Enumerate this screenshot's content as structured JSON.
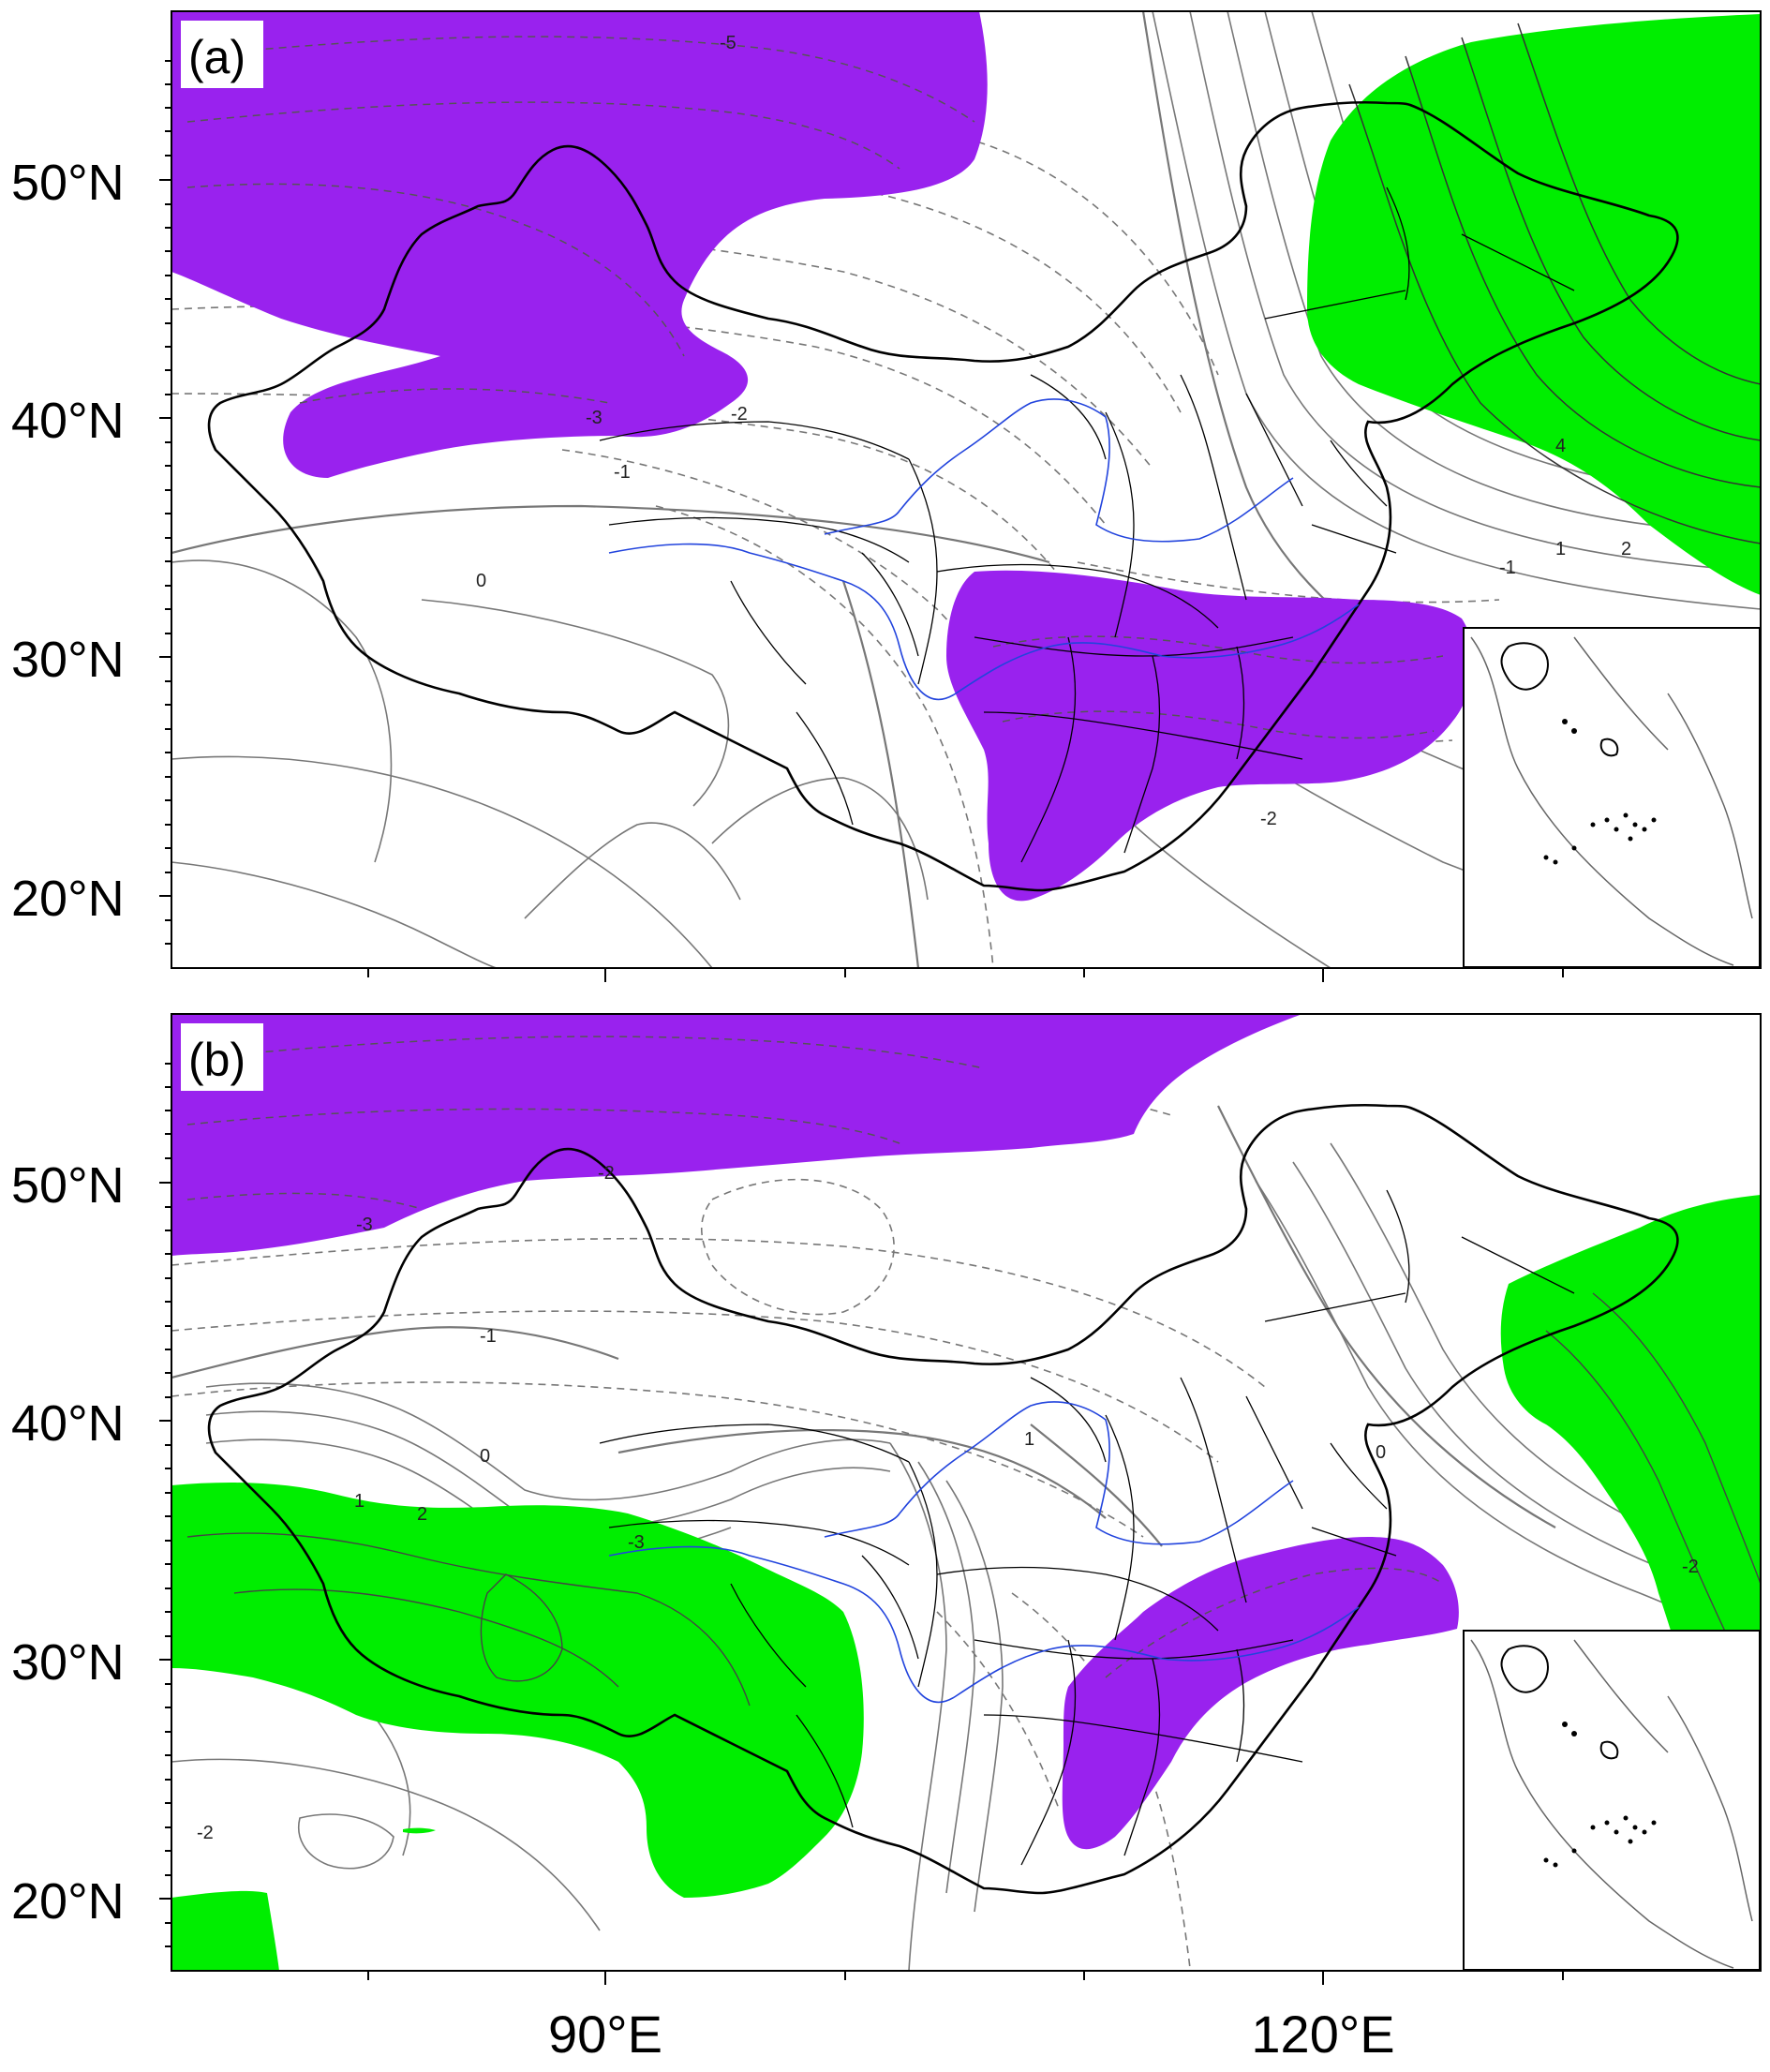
{
  "colors": {
    "negative_fill": "#9922ee",
    "positive_fill": "#00ee00",
    "coastline": "#000000",
    "contour_solid": "#666666",
    "contour_dashed": "#666666",
    "river": "#2244dd",
    "background": "#ffffff"
  },
  "axes": {
    "lat_labels": [
      "50°N",
      "40°N",
      "30°N",
      "20°N"
    ],
    "lon_labels": [
      "90°E",
      "120°E"
    ]
  },
  "panels": [
    {
      "id": "a",
      "label": "(a)",
      "contour_labels": [
        "-5",
        "-3",
        "-2",
        "-1",
        "4",
        "1",
        "2",
        "-1",
        "-2",
        "0"
      ]
    },
    {
      "id": "b",
      "label": "(b)",
      "contour_labels": [
        "-2",
        "-3",
        "-1",
        "0",
        "1",
        "2",
        "-3",
        "1",
        "-2",
        "-2",
        "0"
      ]
    }
  ]
}
